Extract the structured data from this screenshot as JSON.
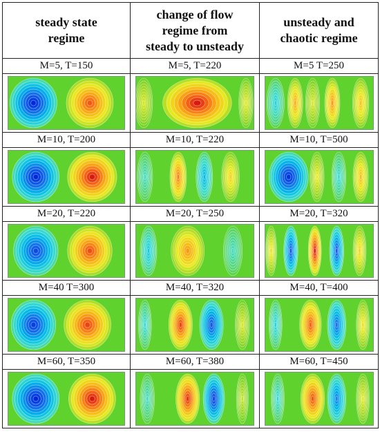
{
  "headers": [
    "steady state regime",
    "change of flow regime from steady to unsteady",
    "unsteady and chaotic regime"
  ],
  "header_lines": [
    [
      "steady state",
      "regime"
    ],
    [
      "change of flow",
      "regime from",
      "steady to unsteady"
    ],
    [
      "unsteady and",
      "chaotic regime"
    ]
  ],
  "rows": [
    {
      "labels": [
        "M=5, T=150",
        "M=5, T=220",
        "M=5 T=250"
      ],
      "plots": [
        {
          "cells": [
            {
              "c": 0.22,
              "s": -1.0,
              "w": 0.4
            },
            {
              "c": 0.7,
              "s": 0.82,
              "w": 0.4
            }
          ]
        },
        {
          "cells": [
            {
              "c": 0.07,
              "s": 0.25,
              "w": 0.15
            },
            {
              "c": 0.52,
              "s": 1.0,
              "w": 0.58
            },
            {
              "c": 0.93,
              "s": 0.28,
              "w": 0.12
            }
          ]
        },
        {
          "cells": [
            {
              "c": 0.1,
              "s": -0.3,
              "w": 0.16
            },
            {
              "c": 0.28,
              "s": 0.55,
              "w": 0.14
            },
            {
              "c": 0.44,
              "s": 0.25,
              "w": 0.13
            },
            {
              "c": 0.62,
              "s": 0.62,
              "w": 0.14
            },
            {
              "c": 0.88,
              "s": 0.45,
              "w": 0.15
            }
          ]
        }
      ]
    },
    {
      "labels": [
        "M=10, T=200",
        "M=10, T=220",
        "M=10, T=500"
      ],
      "plots": [
        {
          "cells": [
            {
              "c": 0.24,
              "s": -1.0,
              "w": 0.4
            },
            {
              "c": 0.72,
              "s": 1.0,
              "w": 0.42
            }
          ]
        },
        {
          "cells": [
            {
              "c": 0.08,
              "s": -0.2,
              "w": 0.13
            },
            {
              "c": 0.36,
              "s": 0.7,
              "w": 0.14
            },
            {
              "c": 0.58,
              "s": -0.45,
              "w": 0.14
            },
            {
              "c": 0.8,
              "s": 0.4,
              "w": 0.15
            }
          ]
        },
        {
          "cells": [
            {
              "c": 0.22,
              "s": -0.95,
              "w": 0.36
            },
            {
              "c": 0.48,
              "s": 0.3,
              "w": 0.13
            },
            {
              "c": 0.68,
              "s": -0.25,
              "w": 0.13
            },
            {
              "c": 0.88,
              "s": 0.48,
              "w": 0.14
            }
          ]
        }
      ]
    },
    {
      "labels": [
        "M=20, T=220",
        "M=20, T=250",
        "M=20, T=320"
      ],
      "plots": [
        {
          "cells": [
            {
              "c": 0.24,
              "s": -0.85,
              "w": 0.38
            },
            {
              "c": 0.7,
              "s": 0.85,
              "w": 0.38
            }
          ]
        },
        {
          "cells": [
            {
              "c": 0.11,
              "s": -0.35,
              "w": 0.14
            },
            {
              "c": 0.44,
              "s": 0.62,
              "w": 0.28
            },
            {
              "c": 0.82,
              "s": -0.2,
              "w": 0.16
            }
          ]
        },
        {
          "cells": [
            {
              "c": 0.06,
              "s": 0.35,
              "w": 0.1
            },
            {
              "c": 0.24,
              "s": -0.8,
              "w": 0.13
            },
            {
              "c": 0.46,
              "s": 1.0,
              "w": 0.12
            },
            {
              "c": 0.66,
              "s": -0.8,
              "w": 0.13
            },
            {
              "c": 0.87,
              "s": 0.4,
              "w": 0.12
            }
          ]
        }
      ]
    },
    {
      "labels": [
        "M=40 T=300",
        "M=40, T=320",
        "M=40, T=400"
      ],
      "plots": [
        {
          "cells": [
            {
              "c": 0.22,
              "s": -0.9,
              "w": 0.38
            },
            {
              "c": 0.68,
              "s": 0.88,
              "w": 0.4
            }
          ]
        },
        {
          "cells": [
            {
              "c": 0.08,
              "s": -0.25,
              "w": 0.11
            },
            {
              "c": 0.38,
              "s": 0.88,
              "w": 0.2
            },
            {
              "c": 0.64,
              "s": -0.8,
              "w": 0.2
            },
            {
              "c": 0.9,
              "s": 0.25,
              "w": 0.12
            }
          ]
        },
        {
          "cells": [
            {
              "c": 0.1,
              "s": -0.3,
              "w": 0.12
            },
            {
              "c": 0.42,
              "s": 0.8,
              "w": 0.2
            },
            {
              "c": 0.66,
              "s": -0.72,
              "w": 0.17
            },
            {
              "c": 0.9,
              "s": 0.35,
              "w": 0.12
            }
          ]
        }
      ]
    },
    {
      "labels": [
        "M=60, T=350",
        "M=60, T=380",
        "M=60, T=450"
      ],
      "plots": [
        {
          "cells": [
            {
              "c": 0.24,
              "s": -1.0,
              "w": 0.4
            },
            {
              "c": 0.72,
              "s": 1.0,
              "w": 0.4
            }
          ]
        },
        {
          "cells": [
            {
              "c": 0.1,
              "s": -0.2,
              "w": 0.12
            },
            {
              "c": 0.44,
              "s": 0.92,
              "w": 0.2
            },
            {
              "c": 0.66,
              "s": -0.88,
              "w": 0.18
            },
            {
              "c": 0.9,
              "s": 0.2,
              "w": 0.1
            }
          ]
        },
        {
          "cells": [
            {
              "c": 0.12,
              "s": -0.25,
              "w": 0.12
            },
            {
              "c": 0.44,
              "s": 0.82,
              "w": 0.22
            },
            {
              "c": 0.66,
              "s": -0.65,
              "w": 0.17
            },
            {
              "c": 0.9,
              "s": 0.28,
              "w": 0.12
            }
          ]
        }
      ]
    }
  ]
}
